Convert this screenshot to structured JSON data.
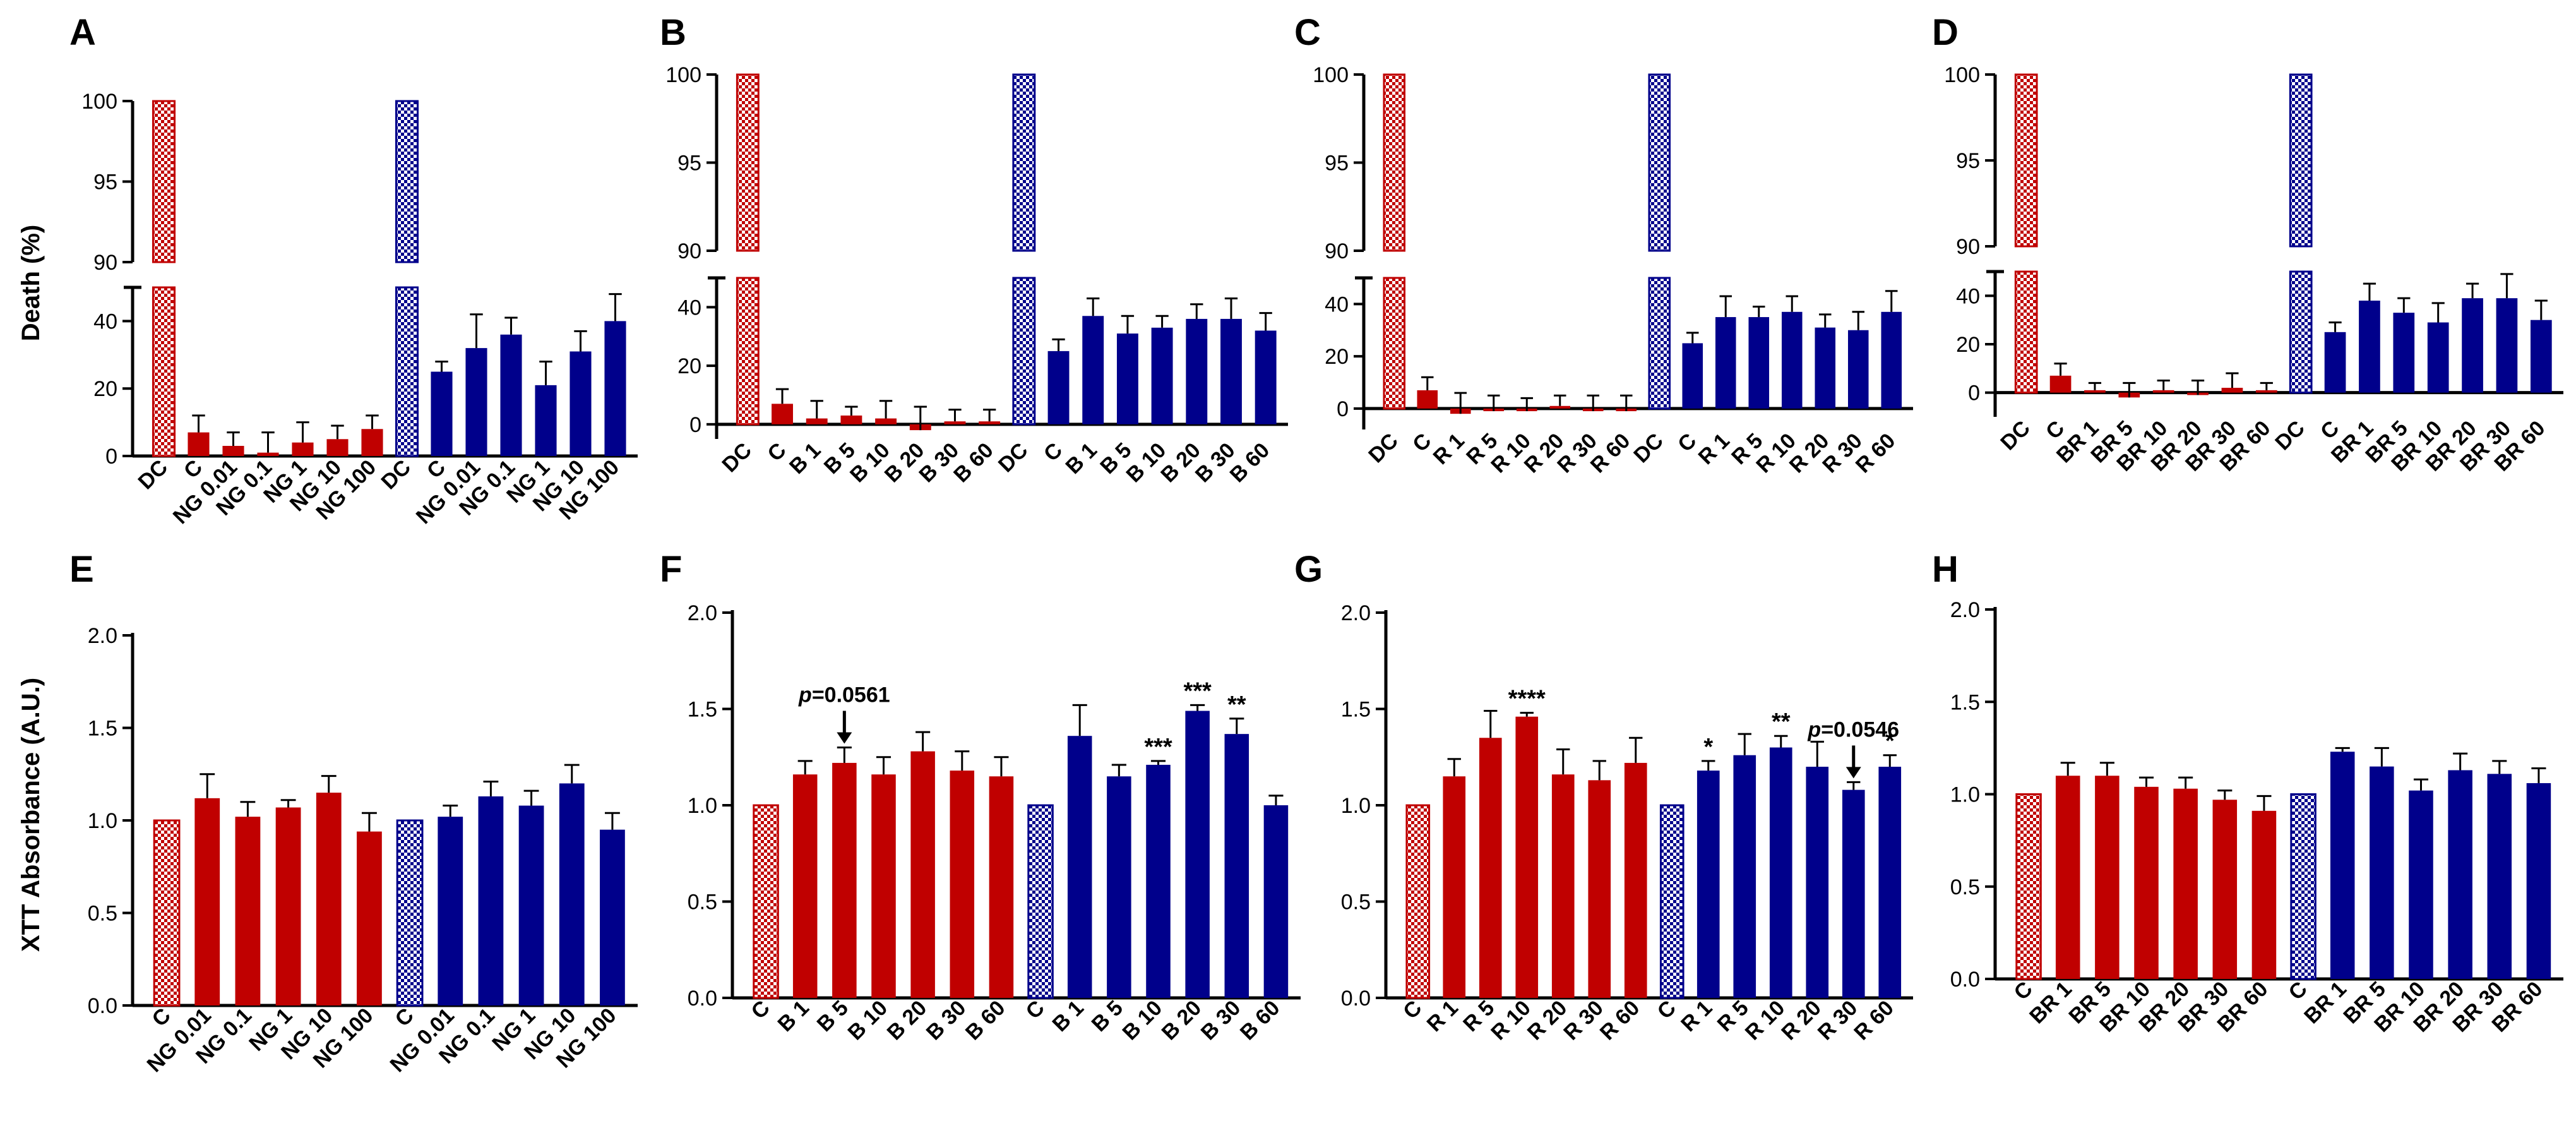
{
  "colors": {
    "red": "#c00000",
    "blue": "#00008b",
    "axis": "#000000",
    "hatch": "#ffffff"
  },
  "figure": {
    "y_axis_label_top": "Death (%)",
    "y_axis_label_bottom": "XTT Absorbance (A.U.)"
  },
  "chart_data": [
    {
      "panel": "A",
      "type": "bar",
      "title": "",
      "ylabel": "Death (%)",
      "broken_axis": true,
      "ylim_lower": [
        0,
        50
      ],
      "yticks_lower": [
        0,
        20,
        40
      ],
      "ylim_upper": [
        90,
        100
      ],
      "yticks_upper": [
        90,
        95,
        100
      ],
      "categories": [
        "DC",
        "C",
        "NG 0.01",
        "NG 0.1",
        "NG 1",
        "NG 10",
        "NG 100",
        "DC",
        "C",
        "NG 0.01",
        "NG 0.1",
        "NG 1",
        "NG 10",
        "NG 100"
      ],
      "values": [
        100,
        7,
        3,
        1,
        4,
        5,
        8,
        100,
        25,
        32,
        36,
        21,
        31,
        40
      ],
      "errors": [
        0,
        5,
        4,
        6,
        6,
        4,
        4,
        0,
        3,
        10,
        5,
        7,
        6,
        8
      ],
      "colors": [
        "red",
        "red",
        "red",
        "red",
        "red",
        "red",
        "red",
        "blue",
        "blue",
        "blue",
        "blue",
        "blue",
        "blue",
        "blue"
      ],
      "hatched": [
        true,
        false,
        false,
        false,
        false,
        false,
        false,
        true,
        false,
        false,
        false,
        false,
        false,
        false
      ],
      "annotations": []
    },
    {
      "panel": "B",
      "type": "bar",
      "title": "",
      "ylabel": "",
      "broken_axis": true,
      "ylim_lower": [
        -5,
        50
      ],
      "yticks_lower": [
        0,
        20,
        40
      ],
      "ylim_upper": [
        90,
        100
      ],
      "yticks_upper": [
        90,
        95,
        100
      ],
      "categories": [
        "DC",
        "C",
        "B 1",
        "B 5",
        "B 10",
        "B 20",
        "B 30",
        "B 60",
        "DC",
        "C",
        "B 1",
        "B 5",
        "B 10",
        "B 20",
        "B 30",
        "B 60"
      ],
      "values": [
        100,
        7,
        2,
        3,
        2,
        -2,
        1,
        1,
        100,
        25,
        37,
        31,
        33,
        36,
        36,
        32
      ],
      "errors": [
        0,
        5,
        6,
        3,
        6,
        8,
        4,
        4,
        0,
        4,
        6,
        6,
        4,
        5,
        7,
        6
      ],
      "colors": [
        "red",
        "red",
        "red",
        "red",
        "red",
        "red",
        "red",
        "red",
        "blue",
        "blue",
        "blue",
        "blue",
        "blue",
        "blue",
        "blue",
        "blue"
      ],
      "hatched": [
        true,
        false,
        false,
        false,
        false,
        false,
        false,
        false,
        true,
        false,
        false,
        false,
        false,
        false,
        false,
        false
      ],
      "annotations": []
    },
    {
      "panel": "C",
      "type": "bar",
      "title": "",
      "ylabel": "",
      "broken_axis": true,
      "ylim_lower": [
        -8,
        50
      ],
      "yticks_lower": [
        0,
        20,
        40
      ],
      "ylim_upper": [
        90,
        100
      ],
      "yticks_upper": [
        90,
        95,
        100
      ],
      "categories": [
        "DC",
        "C",
        "R 1",
        "R 5",
        "R 10",
        "R 20",
        "R 30",
        "R 60",
        "DC",
        "C",
        "R 1",
        "R 5",
        "R 10",
        "R 20",
        "R 30",
        "R 60"
      ],
      "values": [
        100,
        7,
        -2,
        -1,
        -1,
        1,
        -1,
        -1,
        100,
        25,
        35,
        35,
        37,
        31,
        30,
        37
      ],
      "errors": [
        0,
        5,
        8,
        6,
        5,
        4,
        6,
        6,
        0,
        4,
        8,
        4,
        6,
        5,
        7,
        8
      ],
      "colors": [
        "red",
        "red",
        "red",
        "red",
        "red",
        "red",
        "red",
        "red",
        "blue",
        "blue",
        "blue",
        "blue",
        "blue",
        "blue",
        "blue",
        "blue"
      ],
      "hatched": [
        true,
        false,
        false,
        false,
        false,
        false,
        false,
        false,
        true,
        false,
        false,
        false,
        false,
        false,
        false,
        false
      ],
      "annotations": []
    },
    {
      "panel": "D",
      "type": "bar",
      "title": "",
      "ylabel": "",
      "broken_axis": true,
      "ylim_lower": [
        -10,
        50
      ],
      "yticks_lower": [
        0,
        20,
        40
      ],
      "ylim_upper": [
        90,
        100
      ],
      "yticks_upper": [
        90,
        95,
        100
      ],
      "categories": [
        "DC",
        "C",
        "BR 1",
        "BR 5",
        "BR 10",
        "BR 20",
        "BR 30",
        "BR 60",
        "DC",
        "C",
        "BR 1",
        "BR 5",
        "BR 10",
        "BR 20",
        "BR 30",
        "BR 60"
      ],
      "values": [
        100,
        7,
        1,
        -2,
        1,
        -1,
        2,
        1,
        100,
        25,
        38,
        33,
        29,
        39,
        39,
        30
      ],
      "errors": [
        0,
        5,
        3,
        6,
        4,
        6,
        6,
        3,
        0,
        4,
        7,
        6,
        8,
        6,
        10,
        8
      ],
      "colors": [
        "red",
        "red",
        "red",
        "red",
        "red",
        "red",
        "red",
        "red",
        "blue",
        "blue",
        "blue",
        "blue",
        "blue",
        "blue",
        "blue",
        "blue"
      ],
      "hatched": [
        true,
        false,
        false,
        false,
        false,
        false,
        false,
        false,
        true,
        false,
        false,
        false,
        false,
        false,
        false,
        false
      ],
      "annotations": []
    },
    {
      "panel": "E",
      "type": "bar",
      "title": "",
      "ylabel": "XTT Absorbance (A.U.)",
      "broken_axis": false,
      "ylim": [
        0,
        2.0
      ],
      "yticks": [
        "0.0",
        "0.5",
        "1.0",
        "1.5",
        "2.0"
      ],
      "categories": [
        "C",
        "NG 0.01",
        "NG 0.1",
        "NG 1",
        "NG 10",
        "NG 100",
        "C",
        "NG 0.01",
        "NG 0.1",
        "NG 1",
        "NG 10",
        "NG 100"
      ],
      "values": [
        1.0,
        1.12,
        1.02,
        1.07,
        1.15,
        0.94,
        1.0,
        1.02,
        1.13,
        1.08,
        1.2,
        0.95
      ],
      "errors": [
        0,
        0.13,
        0.08,
        0.04,
        0.09,
        0.1,
        0,
        0.06,
        0.08,
        0.08,
        0.1,
        0.09
      ],
      "colors": [
        "red",
        "red",
        "red",
        "red",
        "red",
        "red",
        "blue",
        "blue",
        "blue",
        "blue",
        "blue",
        "blue"
      ],
      "hatched": [
        true,
        false,
        false,
        false,
        false,
        false,
        true,
        false,
        false,
        false,
        false,
        false
      ],
      "annotations": []
    },
    {
      "panel": "F",
      "type": "bar",
      "title": "",
      "ylabel": "",
      "broken_axis": false,
      "ylim": [
        0,
        2.0
      ],
      "yticks": [
        "0.0",
        "0.5",
        "1.0",
        "1.5",
        "2.0"
      ],
      "categories": [
        "C",
        "B 1",
        "B 5",
        "B 10",
        "B 20",
        "B 30",
        "B 60",
        "C",
        "B 1",
        "B 5",
        "B 10",
        "B 20",
        "B 30",
        "B 60"
      ],
      "values": [
        1.0,
        1.16,
        1.22,
        1.16,
        1.28,
        1.18,
        1.15,
        1.0,
        1.36,
        1.15,
        1.21,
        1.49,
        1.37,
        1.0
      ],
      "errors": [
        0,
        0.07,
        0.08,
        0.09,
        0.1,
        0.1,
        0.1,
        0,
        0.16,
        0.06,
        0.02,
        0.03,
        0.08,
        0.05
      ],
      "colors": [
        "red",
        "red",
        "red",
        "red",
        "red",
        "red",
        "red",
        "blue",
        "blue",
        "blue",
        "blue",
        "blue",
        "blue",
        "blue"
      ],
      "hatched": [
        true,
        false,
        false,
        false,
        false,
        false,
        false,
        true,
        false,
        false,
        false,
        false,
        false,
        false
      ],
      "annotations": [
        {
          "bar": 2,
          "text": "p=0.0561",
          "pvalue_italic_prefix": "p",
          "pvalue_rest": "=0.0561",
          "arrow": true
        },
        {
          "bar": 10,
          "text": "***"
        },
        {
          "bar": 11,
          "text": "***"
        },
        {
          "bar": 12,
          "text": "**"
        }
      ]
    },
    {
      "panel": "G",
      "type": "bar",
      "title": "",
      "ylabel": "",
      "broken_axis": false,
      "ylim": [
        0,
        2.0
      ],
      "yticks": [
        "0.0",
        "0.5",
        "1.0",
        "1.5",
        "2.0"
      ],
      "categories": [
        "C",
        "R 1",
        "R 5",
        "R 10",
        "R 20",
        "R 30",
        "R 60",
        "C",
        "R 1",
        "R 5",
        "R 10",
        "R 20",
        "R 30",
        "R 60"
      ],
      "values": [
        1.0,
        1.15,
        1.35,
        1.46,
        1.16,
        1.13,
        1.22,
        1.0,
        1.18,
        1.26,
        1.3,
        1.2,
        1.08,
        1.2
      ],
      "errors": [
        0,
        0.09,
        0.14,
        0.02,
        0.13,
        0.1,
        0.13,
        0,
        0.05,
        0.11,
        0.06,
        0.13,
        0.04,
        0.06
      ],
      "colors": [
        "red",
        "red",
        "red",
        "red",
        "red",
        "red",
        "red",
        "blue",
        "blue",
        "blue",
        "blue",
        "blue",
        "blue",
        "blue"
      ],
      "hatched": [
        true,
        false,
        false,
        false,
        false,
        false,
        false,
        true,
        false,
        false,
        false,
        false,
        false,
        false
      ],
      "annotations": [
        {
          "bar": 3,
          "text": "****"
        },
        {
          "bar": 8,
          "text": "*"
        },
        {
          "bar": 10,
          "text": "**"
        },
        {
          "bar": 12,
          "text": "p=0.0546",
          "pvalue_italic_prefix": "p",
          "pvalue_rest": "=0.0546",
          "arrow": true
        },
        {
          "bar": 13,
          "text": "*"
        }
      ]
    },
    {
      "panel": "H",
      "type": "bar",
      "title": "",
      "ylabel": "",
      "broken_axis": false,
      "ylim": [
        0,
        2.0
      ],
      "yticks": [
        "0.0",
        "0.5",
        "1.0",
        "1.5",
        "2.0"
      ],
      "categories": [
        "C",
        "BR 1",
        "BR 5",
        "BR 10",
        "BR 20",
        "BR 30",
        "BR 60",
        "C",
        "BR 1",
        "BR 5",
        "BR 10",
        "BR 20",
        "BR 30",
        "BR 60"
      ],
      "values": [
        1.0,
        1.1,
        1.1,
        1.04,
        1.03,
        0.97,
        0.91,
        1.0,
        1.23,
        1.15,
        1.02,
        1.13,
        1.11,
        1.06
      ],
      "errors": [
        0,
        0.07,
        0.07,
        0.05,
        0.06,
        0.05,
        0.08,
        0,
        0.02,
        0.1,
        0.06,
        0.09,
        0.07,
        0.08
      ],
      "colors": [
        "red",
        "red",
        "red",
        "red",
        "red",
        "red",
        "red",
        "blue",
        "blue",
        "blue",
        "blue",
        "blue",
        "blue",
        "blue"
      ],
      "hatched": [
        true,
        false,
        false,
        false,
        false,
        false,
        false,
        true,
        false,
        false,
        false,
        false,
        false,
        false
      ],
      "annotations": []
    }
  ]
}
